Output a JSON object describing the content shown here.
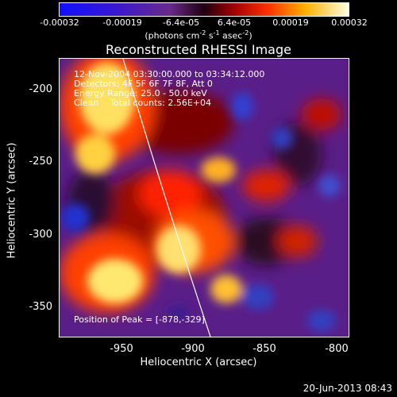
{
  "colorbar": {
    "ticks": [
      "-0.00032",
      "-0.00019",
      "-6.4e-05",
      "6.4e-05",
      "0.00019",
      "0.00032"
    ],
    "units_text": "(photons cm",
    "units_sup1": "-2",
    "units_mid": " s",
    "units_sup2": "-1",
    "units_mid2": " asec",
    "units_sup3": "-2",
    "units_end": ")"
  },
  "title": "Reconstructed RHESSI Image",
  "annotations": {
    "time": "12-Nov-2004 03:30:00.000 to 03:34:12.000",
    "detectors": "Detectors: 4F 5F 6F 7F 8F, Att 0",
    "energy": "Energy Range: 25.0 - 50.0 keV",
    "clean": "Clean    Total counts: 2.56E+04",
    "peak": "Position of Peak = [-878,-329]"
  },
  "axes": {
    "xlabel": "Heliocentric X (arcsec)",
    "ylabel": "Heliocentric Y (arcsec)",
    "xticks": [
      "-950",
      "-900",
      "-850",
      "-800"
    ],
    "yticks": [
      "-200",
      "-250",
      "-300",
      "-350"
    ]
  },
  "footer": "20-Jun-2013 08:43"
}
